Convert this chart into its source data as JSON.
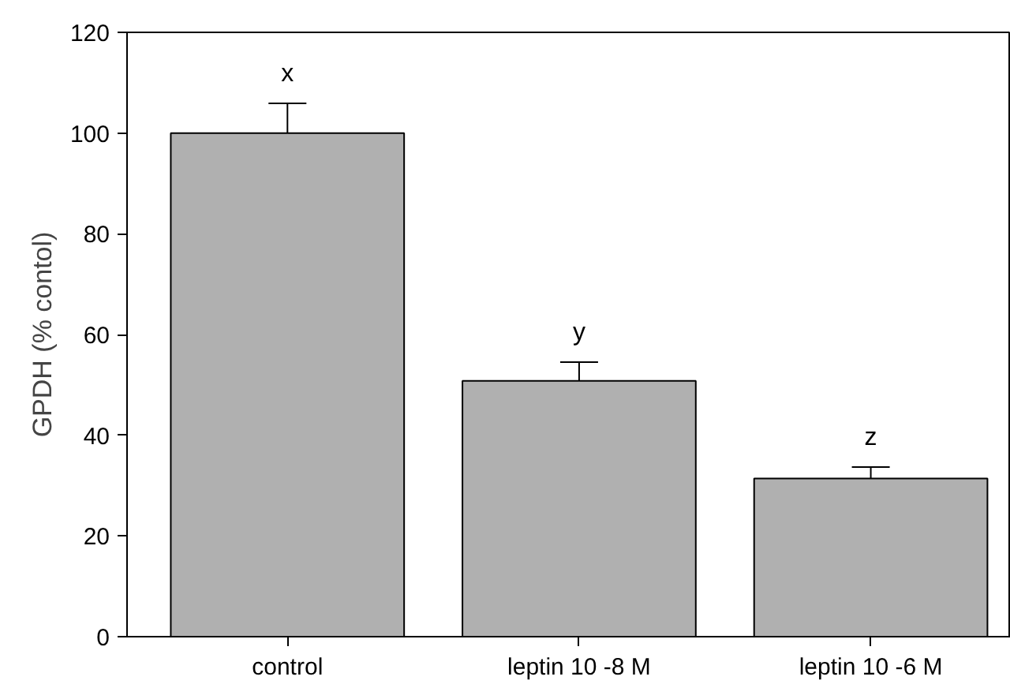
{
  "chart_data": {
    "type": "bar",
    "ylabel": "GPDH (% contol)",
    "categories": [
      "control",
      "leptin 10 -8 M",
      "leptin 10 -6 M"
    ],
    "values": [
      100,
      50.8,
      31.4
    ],
    "errors": [
      [
        100,
        105.9
      ],
      [
        50.8,
        54.5
      ],
      [
        31.4,
        33.7
      ]
    ],
    "color": "#b0b0b0",
    "ylim": [
      0,
      120
    ],
    "yticks": [
      0,
      20,
      40,
      60,
      80,
      100,
      120
    ],
    "grid": false,
    "annotations": [
      "x",
      "y",
      "z"
    ]
  }
}
